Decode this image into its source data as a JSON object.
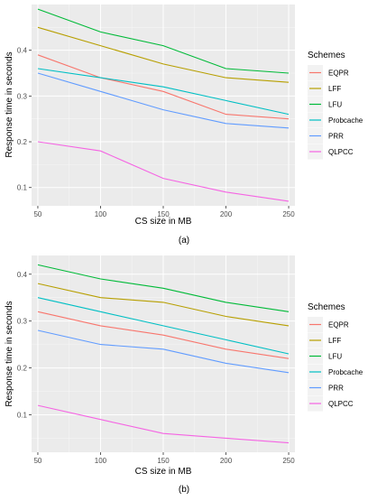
{
  "figure": {
    "captions": [
      "(a)",
      "(b)"
    ]
  },
  "chart_data": [
    {
      "type": "line",
      "xlabel": "CS size in MB",
      "ylabel": "Response time in seconds",
      "x": [
        50,
        100,
        150,
        200,
        250
      ],
      "x_ticks": [
        "50",
        "100",
        "150",
        "200",
        "250"
      ],
      "xlim": [
        45,
        255
      ],
      "ylim": [
        0.06,
        0.5
      ],
      "y_ticks": [
        {
          "v": 0.1,
          "label": "0.1"
        },
        {
          "v": 0.2,
          "label": "0.2"
        },
        {
          "v": 0.3,
          "label": "0.3"
        },
        {
          "v": 0.4,
          "label": "0.4"
        }
      ],
      "grid": true,
      "legend": {
        "title": "Schemes",
        "position": "right"
      },
      "series": [
        {
          "name": "EQPR",
          "color": "#F8766D",
          "values": [
            0.39,
            0.34,
            0.31,
            0.26,
            0.25
          ]
        },
        {
          "name": "LFF",
          "color": "#B79F00",
          "values": [
            0.45,
            0.41,
            0.37,
            0.34,
            0.33
          ]
        },
        {
          "name": "LFU",
          "color": "#00BA38",
          "values": [
            0.49,
            0.44,
            0.41,
            0.36,
            0.35
          ]
        },
        {
          "name": "Probcache",
          "color": "#00BFC4",
          "values": [
            0.36,
            0.34,
            0.32,
            0.29,
            0.26
          ]
        },
        {
          "name": "PRR",
          "color": "#619CFF",
          "values": [
            0.35,
            0.31,
            0.27,
            0.24,
            0.23
          ]
        },
        {
          "name": "QLPCC",
          "color": "#F564E3",
          "values": [
            0.2,
            0.18,
            0.12,
            0.09,
            0.07
          ]
        }
      ]
    },
    {
      "type": "line",
      "xlabel": "CS size in MB",
      "ylabel": "Response time in seconds",
      "x": [
        50,
        100,
        150,
        200,
        250
      ],
      "x_ticks": [
        "50",
        "100",
        "150",
        "200",
        "250"
      ],
      "xlim": [
        45,
        255
      ],
      "ylim": [
        0.02,
        0.44
      ],
      "y_ticks": [
        {
          "v": 0.1,
          "label": "0.1"
        },
        {
          "v": 0.2,
          "label": "0.2"
        },
        {
          "v": 0.3,
          "label": "0.3"
        },
        {
          "v": 0.4,
          "label": "0.4"
        }
      ],
      "grid": true,
      "legend": {
        "title": "Schemes",
        "position": "right"
      },
      "series": [
        {
          "name": "EQPR",
          "color": "#F8766D",
          "values": [
            0.32,
            0.29,
            0.27,
            0.24,
            0.22
          ]
        },
        {
          "name": "LFF",
          "color": "#B79F00",
          "values": [
            0.38,
            0.35,
            0.34,
            0.31,
            0.29
          ]
        },
        {
          "name": "LFU",
          "color": "#00BA38",
          "values": [
            0.42,
            0.39,
            0.37,
            0.34,
            0.32
          ]
        },
        {
          "name": "Probcache",
          "color": "#00BFC4",
          "values": [
            0.35,
            0.32,
            0.29,
            0.26,
            0.23
          ]
        },
        {
          "name": "PRR",
          "color": "#619CFF",
          "values": [
            0.28,
            0.25,
            0.24,
            0.21,
            0.19
          ]
        },
        {
          "name": "QLPCC",
          "color": "#F564E3",
          "values": [
            0.12,
            0.09,
            0.06,
            0.05,
            0.04
          ]
        }
      ]
    }
  ]
}
